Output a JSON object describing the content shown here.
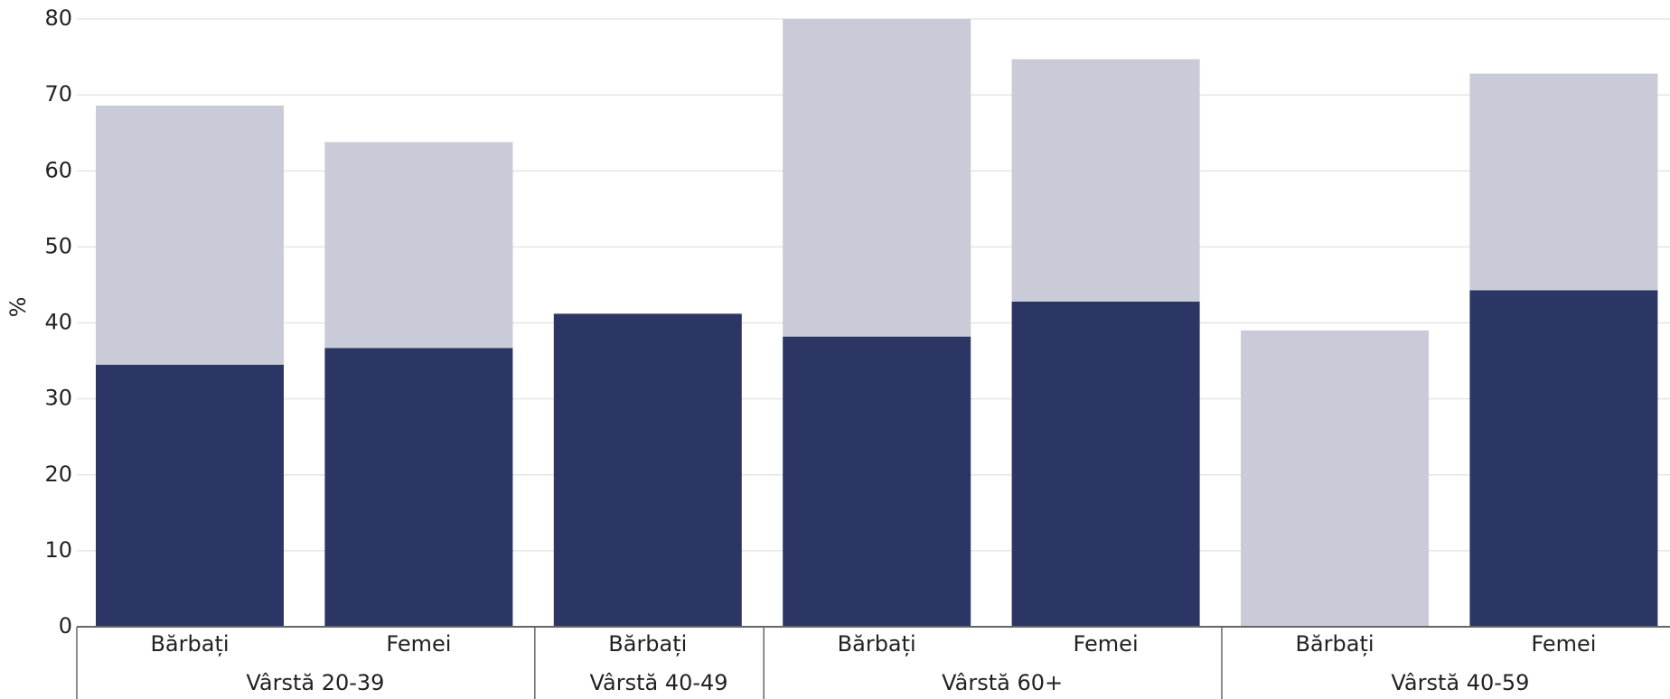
{
  "chart_data": {
    "type": "stacked-bar",
    "y_label": "%",
    "groups": [
      {
        "name": "Vârstă 20-39",
        "categories": [
          "Bărbați",
          "Femei"
        ]
      },
      {
        "name": "Vârstă 40-49",
        "categories": [
          "Bărbați"
        ]
      },
      {
        "name": "Vârstă 60+",
        "categories": [
          "Bărbați",
          "Femei"
        ]
      },
      {
        "name": "Vârstă 40-59",
        "categories": [
          "Bărbați",
          "Femei"
        ]
      }
    ],
    "series": [
      {
        "color": "#2b3664",
        "values": [
          34.5,
          36.7,
          41.2,
          38.2,
          42.8,
          null,
          44.3
        ]
      },
      {
        "color": "#c9ccd8",
        "values": [
          34.1,
          27.1,
          null,
          41.8,
          31.9,
          39.0,
          28.5
        ]
      }
    ],
    "ylim": [
      0,
      80
    ],
    "yticks": [
      0,
      10,
      20,
      30,
      40,
      50,
      60,
      70,
      80
    ],
    "grid": true
  }
}
